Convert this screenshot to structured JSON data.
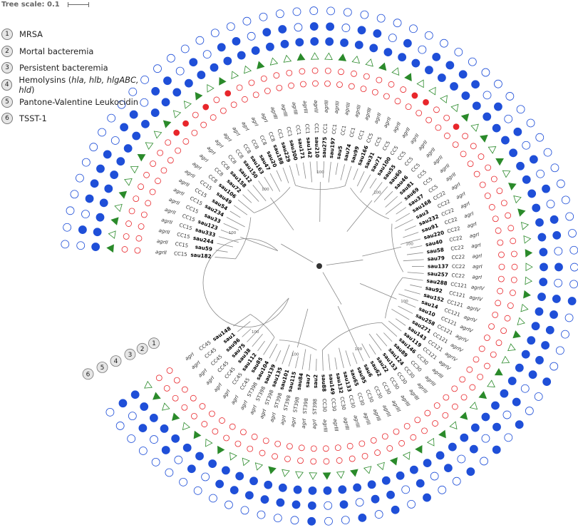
{
  "scale": {
    "label": "Tree scale: 0.1"
  },
  "legend": [
    {
      "num": "1",
      "segments": [
        {
          "t": "MRSA",
          "i": false
        }
      ]
    },
    {
      "num": "2",
      "segments": [
        {
          "t": "Mortal bacteremia",
          "i": false
        }
      ]
    },
    {
      "num": "3",
      "segments": [
        {
          "t": "Persistent bacteremia",
          "i": false
        }
      ]
    },
    {
      "num": "4",
      "segments": [
        {
          "t": "Hemolysins (",
          "i": false
        },
        {
          "t": "hla, hlb, hlgABC, hld",
          "i": true
        },
        {
          "t": ")",
          "i": false
        }
      ]
    },
    {
      "num": "5",
      "segments": [
        {
          "t": "Pantone-Valentine Leukocidin",
          "i": false
        }
      ]
    },
    {
      "num": "6",
      "segments": [
        {
          "t": "TSST-1",
          "i": false
        }
      ]
    }
  ],
  "ring_labels": [
    "1",
    "2",
    "3",
    "4",
    "5",
    "6"
  ],
  "colors": {
    "blue": "#1f4fd8",
    "red": "#e8262b",
    "green": "#2a8a2a"
  },
  "support_value": "100",
  "isolates": [
    {
      "id": "sau148",
      "cc": "CC45",
      "agr": "agrI",
      "mrsa": 0,
      "mortal": 0,
      "pers": 0,
      "hemo": 1,
      "pvl": 1,
      "tsst": 0
    },
    {
      "id": "sau1",
      "cc": "CC45",
      "agr": "agrI",
      "mrsa": 0,
      "mortal": 0,
      "pers": 1,
      "hemo": 1,
      "pvl": 0,
      "tsst": 0
    },
    {
      "id": "sau96",
      "cc": "CC45",
      "agr": "agrI",
      "mrsa": 0,
      "mortal": 0,
      "pers": 0,
      "hemo": 1,
      "pvl": 1,
      "tsst": 0
    },
    {
      "id": "sau75",
      "cc": "CC45",
      "agr": "agrI",
      "mrsa": 0,
      "mortal": 0,
      "pers": 1,
      "hemo": 1,
      "pvl": 0,
      "tsst": 0
    },
    {
      "id": "sau38",
      "cc": "CC45",
      "agr": "agrI",
      "mrsa": 0,
      "mortal": 0,
      "pers": 0,
      "hemo": 1,
      "pvl": 1,
      "tsst": 0
    },
    {
      "id": "sau112",
      "cc": "CC45",
      "agr": "agrI",
      "mrsa": 0,
      "mortal": 0,
      "pers": 1,
      "hemo": 1,
      "pvl": 0,
      "tsst": 0
    },
    {
      "id": "sau85",
      "cc": "CC45",
      "agr": "agrI",
      "mrsa": 0,
      "mortal": 0,
      "pers": 0,
      "hemo": 1,
      "pvl": 1,
      "tsst": 0
    },
    {
      "id": "sau104",
      "cc": "ST398",
      "agr": "agrI",
      "mrsa": 0,
      "mortal": 0,
      "pers": 1,
      "hemo": 1,
      "pvl": 0,
      "tsst": 0
    },
    {
      "id": "sau139",
      "cc": "ST398",
      "agr": "agrI",
      "mrsa": 0,
      "mortal": 0,
      "pers": 0,
      "hemo": 1,
      "pvl": 1,
      "tsst": 0
    },
    {
      "id": "sau135",
      "cc": "ST398",
      "agr": "agrI",
      "mrsa": 0,
      "mortal": 0,
      "pers": 0,
      "hemo": 1,
      "pvl": 1,
      "tsst": 0
    },
    {
      "id": "sau101",
      "cc": "ST398",
      "agr": "agrI",
      "mrsa": 0,
      "mortal": 0,
      "pers": 0,
      "hemo": 1,
      "pvl": 1,
      "tsst": 0
    },
    {
      "id": "sau115",
      "cc": "ST398",
      "agr": "agrI",
      "mrsa": 0,
      "mortal": 0,
      "pers": 1,
      "hemo": 1,
      "pvl": 1,
      "tsst": 0
    },
    {
      "id": "sau84",
      "cc": "ST398",
      "agr": "agrI",
      "mrsa": 0,
      "mortal": 0,
      "pers": 0,
      "hemo": 1,
      "pvl": 1,
      "tsst": 0
    },
    {
      "id": "sau7",
      "cc": "ST398",
      "agr": "agrI",
      "mrsa": 0,
      "mortal": 0,
      "pers": 0,
      "hemo": 1,
      "pvl": 1,
      "tsst": 0
    },
    {
      "id": "sau2",
      "cc": "ST398",
      "agr": "agrI",
      "mrsa": 0,
      "mortal": 0,
      "pers": 0,
      "hemo": 1,
      "pvl": 1,
      "tsst": 1
    },
    {
      "id": "sau88",
      "cc": "CC30",
      "agr": "agrIII",
      "mrsa": 0,
      "mortal": 0,
      "pers": 1,
      "hemo": 1,
      "pvl": 0,
      "tsst": 0
    },
    {
      "id": "sau149",
      "cc": "CC30",
      "agr": "agrIII",
      "mrsa": 0,
      "mortal": 0,
      "pers": 0,
      "hemo": 1,
      "pvl": 1,
      "tsst": 0
    },
    {
      "id": "sau132",
      "cc": "CC30",
      "agr": "agrIII",
      "mrsa": 0,
      "mortal": 0,
      "pers": 1,
      "hemo": 1,
      "pvl": 0,
      "tsst": 1
    },
    {
      "id": "sau133",
      "cc": "CC30",
      "agr": "agrIII",
      "mrsa": 0,
      "mortal": 0,
      "pers": 0,
      "hemo": 1,
      "pvl": 1,
      "tsst": 0
    },
    {
      "id": "sau65",
      "cc": "CC30",
      "agr": "agrIII",
      "mrsa": 0,
      "mortal": 0,
      "pers": 0,
      "hemo": 1,
      "pvl": 1,
      "tsst": 1
    },
    {
      "id": "sau95",
      "cc": "CC30",
      "agr": "agrIII",
      "mrsa": 0,
      "mortal": 0,
      "pers": 1,
      "hemo": 1,
      "pvl": 0,
      "tsst": 0
    },
    {
      "id": "sau6",
      "cc": "CC30",
      "agr": "agrIII",
      "mrsa": 0,
      "mortal": 0,
      "pers": 0,
      "hemo": 1,
      "pvl": 1,
      "tsst": 1
    },
    {
      "id": "sau62",
      "cc": "CC30",
      "agr": "agrIII",
      "mrsa": 0,
      "mortal": 0,
      "pers": 1,
      "hemo": 1,
      "pvl": 0,
      "tsst": 0
    },
    {
      "id": "sau22",
      "cc": "CC30",
      "agr": "agrIII",
      "mrsa": 0,
      "mortal": 0,
      "pers": 0,
      "hemo": 1,
      "pvl": 1,
      "tsst": 0
    },
    {
      "id": "sau153",
      "cc": "CC30",
      "agr": "agrIII",
      "mrsa": 0,
      "mortal": 0,
      "pers": 1,
      "hemo": 1,
      "pvl": 0,
      "tsst": 1
    },
    {
      "id": "sau124",
      "cc": "CC30",
      "agr": "agrIII",
      "mrsa": 0,
      "mortal": 0,
      "pers": 0,
      "hemo": 1,
      "pvl": 1,
      "tsst": 0
    },
    {
      "id": "sau89",
      "cc": "CC30",
      "agr": "agrIII",
      "mrsa": 0,
      "mortal": 0,
      "pers": 1,
      "hemo": 1,
      "pvl": 0,
      "tsst": 1
    },
    {
      "id": "sau146",
      "cc": "CC30",
      "agr": "agrIII",
      "mrsa": 0,
      "mortal": 0,
      "pers": 0,
      "hemo": 1,
      "pvl": 1,
      "tsst": 0
    },
    {
      "id": "sau119",
      "cc": "CC121",
      "agr": "agrIV",
      "mrsa": 0,
      "mortal": 0,
      "pers": 1,
      "hemo": 1,
      "pvl": 0,
      "tsst": 1
    },
    {
      "id": "sau143",
      "cc": "CC121",
      "agr": "agrIV",
      "mrsa": 0,
      "mortal": 0,
      "pers": 0,
      "hemo": 1,
      "pvl": 1,
      "tsst": 0
    },
    {
      "id": "sau271",
      "cc": "CC121",
      "agr": "agrIV",
      "mrsa": 0,
      "mortal": 0,
      "pers": 1,
      "hemo": 1,
      "pvl": 0,
      "tsst": 0
    },
    {
      "id": "sau258",
      "cc": "CC121",
      "agr": "agrIV",
      "mrsa": 0,
      "mortal": 0,
      "pers": 0,
      "hemo": 1,
      "pvl": 1,
      "tsst": 1
    },
    {
      "id": "sau10",
      "cc": "CC121",
      "agr": "agrIV",
      "mrsa": 0,
      "mortal": 0,
      "pers": 0,
      "hemo": 1,
      "pvl": 1,
      "tsst": 0
    },
    {
      "id": "sau14",
      "cc": "CC121",
      "agr": "agrIV",
      "mrsa": 0,
      "mortal": 0,
      "pers": 1,
      "hemo": 1,
      "pvl": 1,
      "tsst": 0
    },
    {
      "id": "sau152",
      "cc": "CC121",
      "agr": "agrIV",
      "mrsa": 0,
      "mortal": 0,
      "pers": 0,
      "hemo": 1,
      "pvl": 1,
      "tsst": 0
    },
    {
      "id": "sau92",
      "cc": "CC121",
      "agr": "agrIV",
      "mrsa": 0,
      "mortal": 0,
      "pers": 0,
      "hemo": 1,
      "pvl": 1,
      "tsst": 0
    },
    {
      "id": "sau288",
      "cc": "CC121",
      "agr": "agrIV",
      "mrsa": 0,
      "mortal": 0,
      "pers": 1,
      "hemo": 1,
      "pvl": 1,
      "tsst": 1
    },
    {
      "id": "sau257",
      "cc": "CC22",
      "agr": "agrI",
      "mrsa": 0,
      "mortal": 0,
      "pers": 0,
      "hemo": 1,
      "pvl": 0,
      "tsst": 0
    },
    {
      "id": "sau137",
      "cc": "CC22",
      "agr": "agrI",
      "mrsa": 0,
      "mortal": 0,
      "pers": 0,
      "hemo": 1,
      "pvl": 1,
      "tsst": 0
    },
    {
      "id": "sau79",
      "cc": "CC22",
      "agr": "agrI",
      "mrsa": 0,
      "mortal": 0,
      "pers": 1,
      "hemo": 1,
      "pvl": 0,
      "tsst": 0
    },
    {
      "id": "sau58",
      "cc": "CC22",
      "agr": "agrI",
      "mrsa": 0,
      "mortal": 0,
      "pers": 0,
      "hemo": 1,
      "pvl": 1,
      "tsst": 0
    },
    {
      "id": "sau40",
      "cc": "CC22",
      "agr": "agrI",
      "mrsa": 0,
      "mortal": 0,
      "pers": 0,
      "hemo": 1,
      "pvl": 1,
      "tsst": 0
    },
    {
      "id": "sau220",
      "cc": "CC22",
      "agr": "agrI",
      "mrsa": 0,
      "mortal": 0,
      "pers": 1,
      "hemo": 1,
      "pvl": 0,
      "tsst": 0
    },
    {
      "id": "sau91",
      "cc": "CC22",
      "agr": "agrI",
      "mrsa": 0,
      "mortal": 0,
      "pers": 0,
      "hemo": 1,
      "pvl": 1,
      "tsst": 0
    },
    {
      "id": "sau232",
      "cc": "CC22",
      "agr": "agrI",
      "mrsa": 0,
      "mortal": 0,
      "pers": 1,
      "hemo": 1,
      "pvl": 0,
      "tsst": 0
    },
    {
      "id": "sau3",
      "cc": "CC22",
      "agr": "agrI",
      "mrsa": 0,
      "mortal": 0,
      "pers": 0,
      "hemo": 1,
      "pvl": 1,
      "tsst": 0
    },
    {
      "id": "sau168",
      "cc": "CC22",
      "agr": "agrI",
      "mrsa": 0,
      "mortal": 0,
      "pers": 1,
      "hemo": 1,
      "pvl": 0,
      "tsst": 0
    },
    {
      "id": "sau37",
      "cc": "CC5",
      "agr": "agrII",
      "mrsa": 0,
      "mortal": 0,
      "pers": 0,
      "hemo": 1,
      "pvl": 1,
      "tsst": 0
    },
    {
      "id": "sau69",
      "cc": "CC5",
      "agr": "agrII",
      "mrsa": 0,
      "mortal": 0,
      "pers": 1,
      "hemo": 1,
      "pvl": 0,
      "tsst": 0
    },
    {
      "id": "sau81",
      "cc": "CC5",
      "agr": "agrII",
      "mrsa": 0,
      "mortal": 0,
      "pers": 0,
      "hemo": 1,
      "pvl": 1,
      "tsst": 0
    },
    {
      "id": "sau46",
      "cc": "CC5",
      "agr": "agrII",
      "mrsa": 0,
      "mortal": 1,
      "pers": 1,
      "hemo": 1,
      "pvl": 0,
      "tsst": 0
    },
    {
      "id": "sau60",
      "cc": "CC5",
      "agr": "agrII",
      "mrsa": 0,
      "mortal": 0,
      "pers": 0,
      "hemo": 1,
      "pvl": 1,
      "tsst": 0
    },
    {
      "id": "sau55",
      "cc": "CC5",
      "agr": "agrII",
      "mrsa": 0,
      "mortal": 0,
      "pers": 0,
      "hemo": 1,
      "pvl": 1,
      "tsst": 0
    },
    {
      "id": "sau100",
      "cc": "CC5",
      "agr": "agrII",
      "mrsa": 0,
      "mortal": 1,
      "pers": 0,
      "hemo": 1,
      "pvl": 1,
      "tsst": 0
    },
    {
      "id": "sau71",
      "cc": "CC5",
      "agr": "agrII",
      "mrsa": 0,
      "mortal": 1,
      "pers": 0,
      "hemo": 1,
      "pvl": 1,
      "tsst": 0
    },
    {
      "id": "sau31",
      "cc": "CC5",
      "agr": "agrII",
      "mrsa": 0,
      "mortal": 0,
      "pers": 1,
      "hemo": 1,
      "pvl": 0,
      "tsst": 0
    },
    {
      "id": "sau166",
      "cc": "CC5",
      "agr": "agrII",
      "mrsa": 0,
      "mortal": 0,
      "pers": 0,
      "hemo": 1,
      "pvl": 1,
      "tsst": 0
    },
    {
      "id": "sau99",
      "cc": "CC1",
      "agr": "agrIII",
      "mrsa": 0,
      "mortal": 0,
      "pers": 1,
      "hemo": 1,
      "pvl": 0,
      "tsst": 0
    },
    {
      "id": "sau74",
      "cc": "CC1",
      "agr": "agrIII",
      "mrsa": 0,
      "mortal": 0,
      "pers": 0,
      "hemo": 1,
      "pvl": 1,
      "tsst": 0
    },
    {
      "id": "sau5",
      "cc": "CC1",
      "agr": "agrIII",
      "mrsa": 0,
      "mortal": 0,
      "pers": 0,
      "hemo": 1,
      "pvl": 1,
      "tsst": 0
    },
    {
      "id": "sau197",
      "cc": "CC1",
      "agr": "agrIII",
      "mrsa": 0,
      "mortal": 0,
      "pers": 1,
      "hemo": 1,
      "pvl": 0,
      "tsst": 0
    },
    {
      "id": "sau275",
      "cc": "CC1",
      "agr": "agrIII",
      "mrsa": 0,
      "mortal": 0,
      "pers": 0,
      "hemo": 1,
      "pvl": 1,
      "tsst": 0
    },
    {
      "id": "sau210",
      "cc": "CC1",
      "agr": "agrIII",
      "mrsa": 0,
      "mortal": 0,
      "pers": 0,
      "hemo": 1,
      "pvl": 1,
      "tsst": 0
    },
    {
      "id": "sau142",
      "cc": "CC1",
      "agr": "agrIII",
      "mrsa": 0,
      "mortal": 0,
      "pers": 1,
      "hemo": 1,
      "pvl": 0,
      "tsst": 0
    },
    {
      "id": "sau171",
      "cc": "CC1",
      "agr": "agrIII",
      "mrsa": 0,
      "mortal": 0,
      "pers": 0,
      "hemo": 1,
      "pvl": 1,
      "tsst": 0
    },
    {
      "id": "sau300",
      "cc": "CC1",
      "agr": "agrIII",
      "mrsa": 0,
      "mortal": 0,
      "pers": 0,
      "hemo": 1,
      "pvl": 1,
      "tsst": 0
    },
    {
      "id": "sau229",
      "cc": "CC1",
      "agr": "agrIII",
      "mrsa": 0,
      "mortal": 0,
      "pers": 1,
      "hemo": 1,
      "pvl": 0,
      "tsst": 0
    },
    {
      "id": "sau188",
      "cc": "CC8",
      "agr": "agrI",
      "mrsa": 0,
      "mortal": 0,
      "pers": 0,
      "hemo": 1,
      "pvl": 1,
      "tsst": 0
    },
    {
      "id": "sau20",
      "cc": "CC8",
      "agr": "agrI",
      "mrsa": 0,
      "mortal": 0,
      "pers": 0,
      "hemo": 1,
      "pvl": 1,
      "tsst": 0
    },
    {
      "id": "sau47",
      "cc": "CC8",
      "agr": "agrI",
      "mrsa": 0,
      "mortal": 1,
      "pers": 1,
      "hemo": 1,
      "pvl": 0,
      "tsst": 0
    },
    {
      "id": "sau163",
      "cc": "CC8",
      "agr": "agrI",
      "mrsa": 0,
      "mortal": 0,
      "pers": 0,
      "hemo": 1,
      "pvl": 1,
      "tsst": 0
    },
    {
      "id": "sau150",
      "cc": "CC8",
      "agr": "agrI",
      "mrsa": 0,
      "mortal": 1,
      "pers": 1,
      "hemo": 1,
      "pvl": 0,
      "tsst": 0
    },
    {
      "id": "sau12",
      "cc": "CC8",
      "agr": "agrI",
      "mrsa": 0,
      "mortal": 0,
      "pers": 0,
      "hemo": 1,
      "pvl": 1,
      "tsst": 0
    },
    {
      "id": "sau158",
      "cc": "CC8",
      "agr": "agrI",
      "mrsa": 0,
      "mortal": 1,
      "pers": 0,
      "hemo": 1,
      "pvl": 1,
      "tsst": 0
    },
    {
      "id": "sau72",
      "cc": "CC8",
      "agr": "agrI",
      "mrsa": 0,
      "mortal": 1,
      "pers": 1,
      "hemo": 1,
      "pvl": 0,
      "tsst": 0
    },
    {
      "id": "sau106",
      "cc": "CC8",
      "agr": "agrI",
      "mrsa": 0,
      "mortal": 0,
      "pers": 0,
      "hemo": 1,
      "pvl": 1,
      "tsst": 0
    },
    {
      "id": "sau49",
      "cc": "CC15",
      "agr": "agrII",
      "mrsa": 0,
      "mortal": 0,
      "pers": 0,
      "hemo": 1,
      "pvl": 1,
      "tsst": 0
    },
    {
      "id": "sau54",
      "cc": "CC15",
      "agr": "agrII",
      "mrsa": 0,
      "mortal": 0,
      "pers": 1,
      "hemo": 1,
      "pvl": 0,
      "tsst": 0
    },
    {
      "id": "sau234",
      "cc": "CC15",
      "agr": "agrII",
      "mrsa": 0,
      "mortal": 0,
      "pers": 0,
      "hemo": 1,
      "pvl": 1,
      "tsst": 0
    },
    {
      "id": "sau33",
      "cc": "CC15",
      "agr": "agrII",
      "mrsa": 0,
      "mortal": 0,
      "pers": 0,
      "hemo": 1,
      "pvl": 1,
      "tsst": 0
    },
    {
      "id": "sau123",
      "cc": "CC15",
      "agr": "agrII",
      "mrsa": 0,
      "mortal": 0,
      "pers": 1,
      "hemo": 1,
      "pvl": 1,
      "tsst": 0
    },
    {
      "id": "sau333",
      "cc": "CC15",
      "agr": "agrII",
      "mrsa": 0,
      "mortal": 0,
      "pers": 0,
      "hemo": 1,
      "pvl": 1,
      "tsst": 0
    },
    {
      "id": "sau244",
      "cc": "CC15",
      "agr": "agrII",
      "mrsa": 0,
      "mortal": 0,
      "pers": 1,
      "hemo": 1,
      "pvl": 0,
      "tsst": 0
    },
    {
      "id": "sau59",
      "cc": "CC15",
      "agr": "agrII",
      "mrsa": 0,
      "mortal": 0,
      "pers": 0,
      "hemo": 1,
      "pvl": 1,
      "tsst": 0
    },
    {
      "id": "sau182",
      "cc": "CC15",
      "agr": "agrII",
      "mrsa": 0,
      "mortal": 0,
      "pers": 1,
      "hemo": 1,
      "pvl": 0,
      "tsst": 0
    }
  ]
}
